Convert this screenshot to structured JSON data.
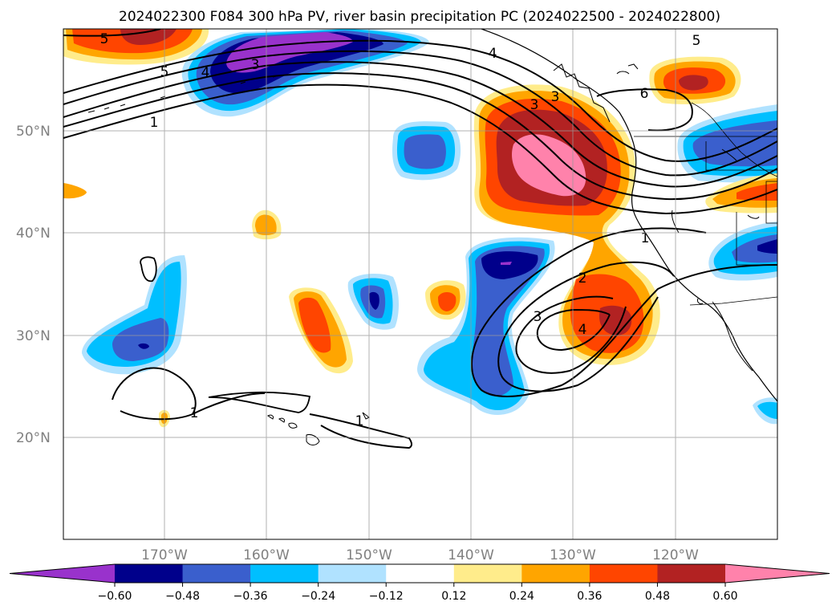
{
  "title": "2024022300 F084 300 hPa PV, river basin precipitation PC (2024022500 - 2024022800)",
  "lon_ticks": [
    "170°W",
    "160°W",
    "150°W",
    "140°W",
    "130°W",
    "120°W"
  ],
  "lat_ticks": [
    "50°N",
    "40°N",
    "30°N",
    "20°N"
  ],
  "pv_labels": [
    "5",
    "5",
    "4",
    "3",
    "1",
    "4",
    "3",
    "3",
    "6",
    "5",
    "1",
    "2",
    "3",
    "4",
    "1",
    "1"
  ],
  "colorbar": {
    "ticks": [
      "−0.60",
      "−0.48",
      "−0.36",
      "−0.24",
      "−0.12",
      "0.12",
      "0.24",
      "0.36",
      "0.48",
      "0.60"
    ],
    "colors": [
      "#9932CC",
      "#00008B",
      "#3A5FCD",
      "#00BFFF",
      "#B0E2FF",
      "#FFFFFF",
      "#FFEC8B",
      "#FFA500",
      "#FF4500",
      "#B22222",
      "#FF82AB"
    ]
  }
}
